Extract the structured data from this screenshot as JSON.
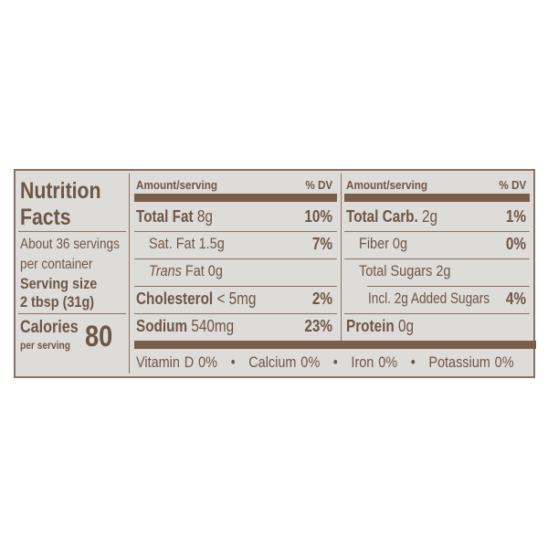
{
  "title": "Nutrition Facts",
  "title_line1": "Nutrition",
  "title_line2": "Facts",
  "servings_line1": "About 36 servings",
  "servings_line2": "per container",
  "serving_size_label": "Serving size",
  "serving_size_value": "2 tbsp (31g)",
  "calories_label": "Calories",
  "calories_sub": "per serving",
  "calories_value": "80",
  "left": {
    "header_amount": "Amount/serving",
    "header_dv": "% DV",
    "rows": [
      {
        "bold": "Total Fat",
        "value": "8g",
        "dv": "10%"
      },
      {
        "bold": "",
        "value": "Sat. Fat 1.5g",
        "dv": "7%"
      },
      {
        "italic": "Trans",
        "value": "Fat 0g",
        "dv": ""
      },
      {
        "bold": "Cholesterol",
        "value": "< 5mg",
        "dv": "2%"
      },
      {
        "bold": "Sodium",
        "value": "540mg",
        "dv": "23%"
      }
    ]
  },
  "right": {
    "header_amount": "Amount/serving",
    "header_dv": "% DV",
    "rows": [
      {
        "bold": "Total Carb.",
        "value": "2g",
        "dv": "1%"
      },
      {
        "bold": "",
        "value": "Fiber 0g",
        "dv": "0%"
      },
      {
        "bold": "",
        "value": "Total Sugars 2g",
        "dv": ""
      },
      {
        "bold": "",
        "value": "Incl. 2g Added Sugars",
        "dv": "4%"
      },
      {
        "bold": "Protein",
        "value": "0g",
        "dv": ""
      }
    ]
  },
  "vitamins": [
    "Vitamin D 0%",
    "Calcium 0%",
    "Iron 0%",
    "Potassium 0%"
  ],
  "bullet": "•",
  "colors": {
    "text": "#6e5646",
    "background": "#dedcd8",
    "bar": "#7a5e48"
  }
}
